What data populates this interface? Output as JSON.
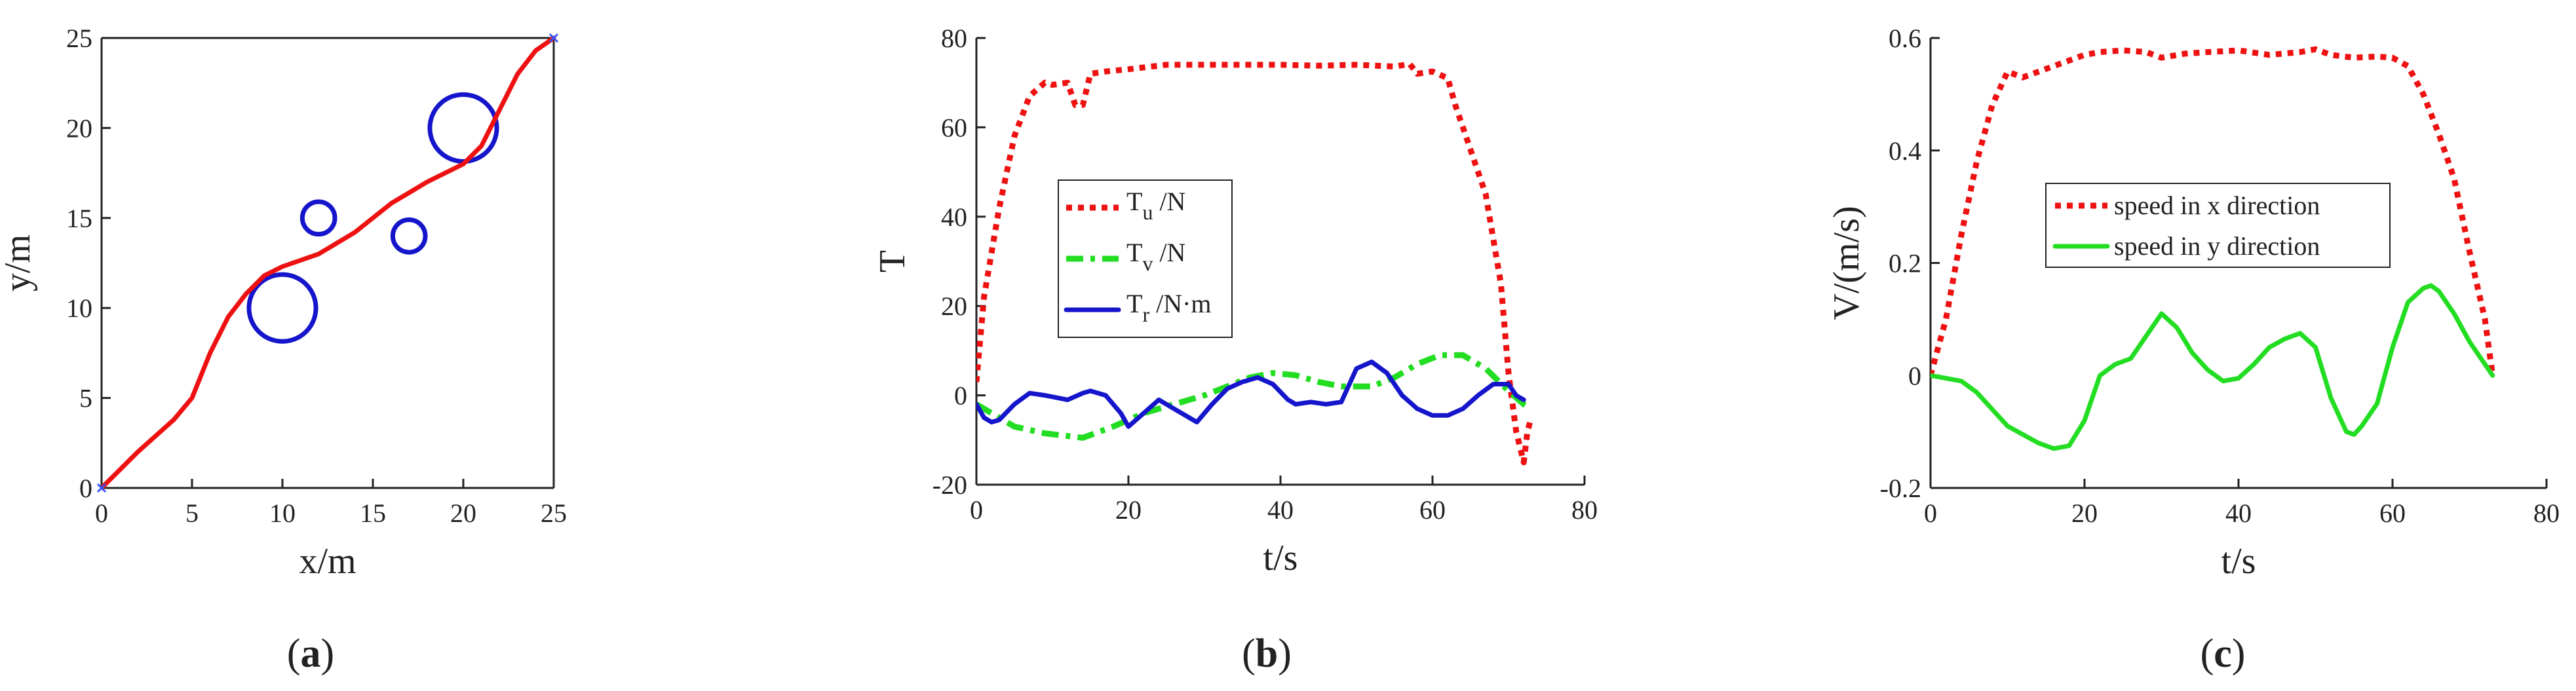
{
  "chart_data": [
    {
      "panel": "a",
      "type": "line",
      "xlabel": "x/m",
      "ylabel": "y/m",
      "xlim": [
        0,
        25
      ],
      "ylim": [
        0,
        25
      ],
      "xticks": [
        0,
        5,
        10,
        15,
        20,
        25
      ],
      "yticks": [
        0,
        5,
        10,
        15,
        20,
        25
      ],
      "colors": {
        "path": "#ee1111",
        "obstacle": "#1515cc",
        "endpoint": "#3355ff"
      },
      "series": [
        {
          "name": "path",
          "x": [
            0,
            2,
            4,
            5,
            6,
            7,
            8,
            9,
            10,
            12,
            14,
            16,
            18,
            20,
            21,
            22,
            23,
            24,
            25
          ],
          "y": [
            0,
            2,
            3.8,
            5,
            7.5,
            9.5,
            10.8,
            11.8,
            12.3,
            13,
            14.2,
            15.8,
            17,
            18,
            19,
            21,
            23,
            24.3,
            25
          ]
        }
      ],
      "obstacles": [
        {
          "cx": 10,
          "cy": 10,
          "r": 1.85
        },
        {
          "cx": 12,
          "cy": 15,
          "r": 0.9
        },
        {
          "cx": 17,
          "cy": 14,
          "r": 0.9
        },
        {
          "cx": 20,
          "cy": 20,
          "r": 1.85
        }
      ],
      "endpoints": [
        {
          "x": 0,
          "y": 0
        },
        {
          "x": 25,
          "y": 25
        }
      ]
    },
    {
      "panel": "b",
      "type": "line",
      "xlabel": "t/s",
      "ylabel": "T",
      "xlim": [
        0,
        80
      ],
      "ylim": [
        -20,
        80
      ],
      "xticks": [
        0,
        20,
        40,
        60,
        80
      ],
      "yticks": [
        -20,
        0,
        20,
        40,
        60,
        80
      ],
      "legend_position": "middle-left",
      "series": [
        {
          "name": "T_u /N",
          "base": "T",
          "sub": "u",
          "unit": " /N",
          "color": "#ee1111",
          "style": "dotted",
          "x": [
            0,
            1,
            3,
            5,
            7,
            9,
            10,
            12,
            13,
            14,
            15,
            17,
            20,
            25,
            30,
            40,
            45,
            50,
            55,
            57,
            58,
            60,
            62,
            63,
            65,
            67,
            69,
            70,
            71,
            72,
            72.5,
            73
          ],
          "y": [
            3,
            22,
            42,
            58,
            67,
            70,
            69.5,
            70,
            65,
            65,
            72,
            72.5,
            73,
            74,
            74,
            74,
            73.8,
            74,
            73.6,
            74.2,
            72,
            72.5,
            71,
            65,
            55,
            45,
            25,
            5,
            -8,
            -15,
            -8,
            -5
          ]
        },
        {
          "name": "T_v /N",
          "base": "T",
          "sub": "v",
          "unit": " /N",
          "color": "#22dd22",
          "style": "dashdot",
          "x": [
            0,
            2,
            5,
            9,
            14,
            18,
            22,
            26,
            30,
            33,
            36,
            39,
            42,
            45,
            48,
            52,
            55,
            58,
            61,
            64,
            67,
            70,
            72,
            73
          ],
          "y": [
            -2,
            -4,
            -7,
            -8.5,
            -9.5,
            -7,
            -4,
            -2,
            0,
            2,
            4,
            5,
            4.5,
            3,
            2,
            2,
            4,
            7,
            9,
            9,
            6,
            1,
            -2,
            -3
          ]
        },
        {
          "name": "T_r /N·m",
          "base": "T",
          "sub": "r",
          "unit": " /N·m",
          "color": "#1515cc",
          "style": "solid",
          "x": [
            0,
            1,
            2,
            3,
            5,
            7,
            9,
            12,
            14,
            15,
            17,
            19,
            20,
            22,
            24,
            26,
            28,
            29,
            31,
            33,
            35,
            37,
            39,
            41,
            42,
            44,
            46,
            48,
            50,
            52,
            54,
            56,
            58,
            60,
            62,
            64,
            66,
            68,
            70,
            71,
            72
          ],
          "y": [
            -2,
            -5,
            -6,
            -5.5,
            -2,
            0.5,
            0,
            -1,
            0.5,
            1,
            0,
            -4,
            -7,
            -4,
            -1,
            -3,
            -5,
            -6,
            -2,
            1.5,
            3,
            4,
            2.5,
            -1,
            -2,
            -1.5,
            -2,
            -1.5,
            6,
            7.5,
            5,
            0,
            -3,
            -4.5,
            -4.5,
            -3,
            0,
            2.5,
            2.5,
            0,
            -1
          ]
        }
      ]
    },
    {
      "panel": "c",
      "type": "line",
      "xlabel": "t/s",
      "ylabel": "V/(m/s)",
      "xlim": [
        0,
        80
      ],
      "ylim": [
        -0.2,
        0.6
      ],
      "xticks": [
        0,
        20,
        40,
        60,
        80
      ],
      "yticks": [
        -0.2,
        0,
        0.2,
        0.4,
        0.6
      ],
      "legend_position": "middle",
      "series": [
        {
          "name": "speed in x direction",
          "color": "#ee1111",
          "style": "dotted",
          "x": [
            0,
            2,
            4,
            6,
            8,
            10,
            12,
            14,
            16,
            18,
            20,
            22,
            25,
            28,
            30,
            33,
            36,
            40,
            44,
            48,
            50,
            52,
            55,
            58,
            60,
            62,
            64,
            66,
            68,
            70,
            72,
            73
          ],
          "y": [
            0,
            0.1,
            0.25,
            0.38,
            0.48,
            0.54,
            0.53,
            0.54,
            0.55,
            0.56,
            0.57,
            0.575,
            0.578,
            0.575,
            0.565,
            0.572,
            0.575,
            0.578,
            0.57,
            0.575,
            0.58,
            0.57,
            0.565,
            0.567,
            0.565,
            0.55,
            0.5,
            0.43,
            0.35,
            0.22,
            0.1,
            0
          ]
        },
        {
          "name": "speed in y direction",
          "color": "#22dd22",
          "style": "solid",
          "x": [
            0,
            2,
            4,
            6,
            8,
            10,
            12,
            14,
            16,
            18,
            20,
            22,
            24,
            26,
            28,
            30,
            32,
            34,
            36,
            38,
            40,
            42,
            44,
            46,
            48,
            50,
            52,
            54,
            55,
            56,
            58,
            60,
            62,
            64,
            65,
            66,
            68,
            70,
            72,
            73
          ],
          "y": [
            0,
            -0.005,
            -0.01,
            -0.03,
            -0.06,
            -0.09,
            -0.105,
            -0.12,
            -0.13,
            -0.125,
            -0.08,
            0,
            0.02,
            0.03,
            0.07,
            0.11,
            0.085,
            0.04,
            0.01,
            -0.01,
            -0.005,
            0.02,
            0.05,
            0.065,
            0.075,
            0.05,
            -0.04,
            -0.1,
            -0.105,
            -0.09,
            -0.05,
            0.05,
            0.13,
            0.155,
            0.16,
            0.15,
            0.11,
            0.06,
            0.02,
            0
          ]
        }
      ]
    }
  ],
  "panel_labels": [
    "a",
    "b",
    "c"
  ]
}
